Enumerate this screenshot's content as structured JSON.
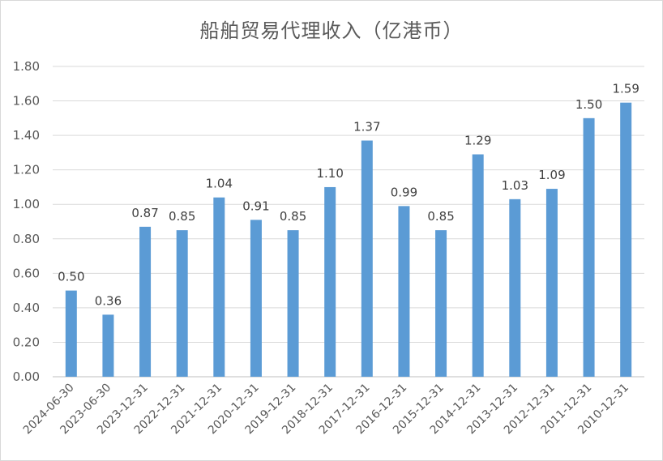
{
  "chart_data": {
    "type": "bar",
    "title": "船舶贸易代理收入（亿港币）",
    "categories": [
      "2024-06-30",
      "2023-06-30",
      "2023-12-31",
      "2022-12-31",
      "2021-12-31",
      "2020-12-31",
      "2019-12-31",
      "2018-12-31",
      "2017-12-31",
      "2016-12-31",
      "2015-12-31",
      "2014-12-31",
      "2013-12-31",
      "2012-12-31",
      "2011-12-31",
      "2010-12-31"
    ],
    "values": [
      0.5,
      0.36,
      0.87,
      0.85,
      1.04,
      0.91,
      0.85,
      1.1,
      1.37,
      0.99,
      0.85,
      1.29,
      1.03,
      1.09,
      1.5,
      1.59
    ],
    "data_labels": [
      "0.50",
      "0.36",
      "0.87",
      "0.85",
      "1.04",
      "0.91",
      "0.85",
      "1.10",
      "1.37",
      "0.99",
      "0.85",
      "1.29",
      "1.03",
      "1.09",
      "1.50",
      "1.59"
    ],
    "yticks": [
      "0.00",
      "0.20",
      "0.40",
      "0.60",
      "0.80",
      "1.00",
      "1.20",
      "1.40",
      "1.60",
      "1.80"
    ],
    "ylim": [
      0,
      1.8
    ],
    "grid": true,
    "bar_color": "#5b9bd5"
  }
}
